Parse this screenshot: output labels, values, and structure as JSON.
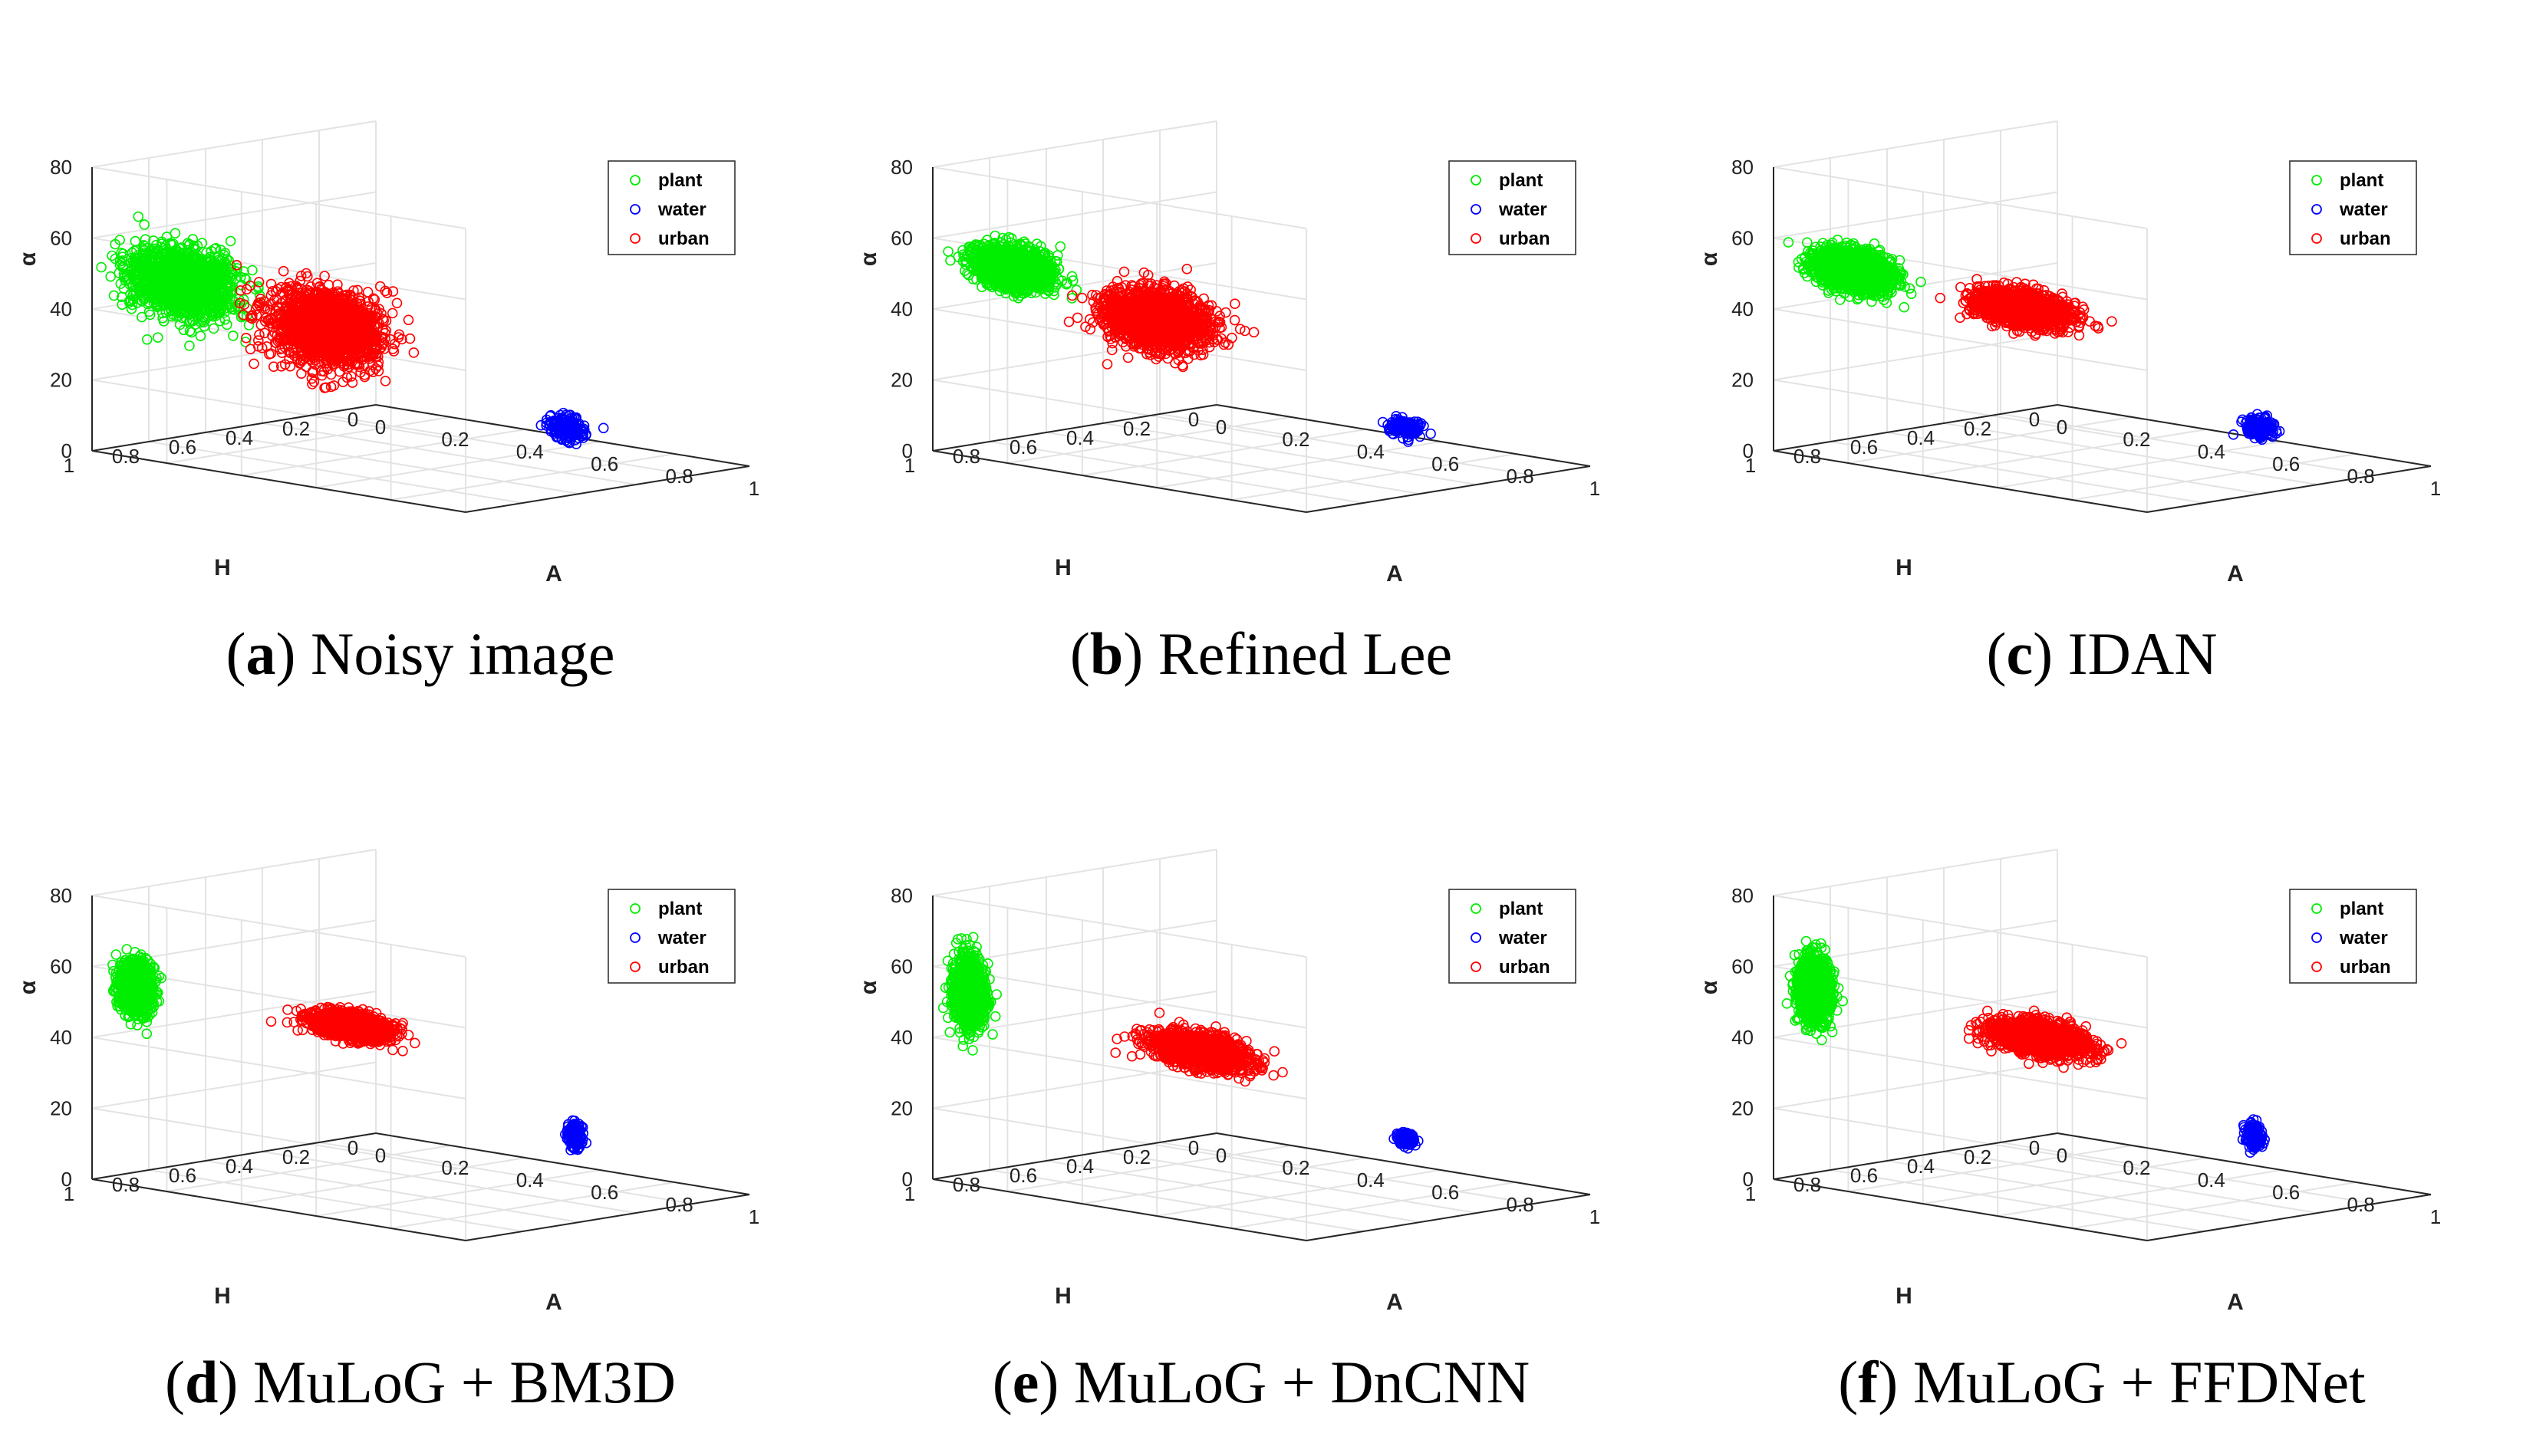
{
  "figure": {
    "panels": [
      {
        "letter": "a",
        "caption": " Noisy image"
      },
      {
        "letter": "b",
        "caption": " Refined Lee"
      },
      {
        "letter": "c",
        "caption": " IDAN"
      },
      {
        "letter": "d",
        "caption": " MuLoG + BM3D"
      },
      {
        "letter": "e",
        "caption": " MuLoG + DnCNN"
      },
      {
        "letter": "f",
        "caption": " MuLoG + FFDNet"
      }
    ]
  },
  "colors": {
    "plant": "#00ee00",
    "water": "#0000ff",
    "urban": "#ff0000",
    "grid": "#e3e3e3",
    "axis": "#262626"
  },
  "chart_data": [
    {
      "type": "scatter3d",
      "title": "(a) Noisy image",
      "xlabel": "A",
      "ylabel": "H",
      "zlabel": "α",
      "xlim": [
        0,
        1
      ],
      "ylim": [
        0,
        1
      ],
      "zlim": [
        0,
        80
      ],
      "xticks": [
        "0",
        "0.2",
        "0.4",
        "0.6",
        "0.8",
        "1"
      ],
      "yticks": [
        "0",
        "0.2",
        "0.4",
        "0.6",
        "0.8",
        "1"
      ],
      "zticks": [
        "0",
        "20",
        "40",
        "60",
        "80"
      ],
      "legend": [
        "plant",
        "water",
        "urban"
      ],
      "series": [
        {
          "name": "plant",
          "A_center": 0.22,
          "H_center": 0.97,
          "alpha_center": 51,
          "spread": [
            0.14,
            0.03,
            8
          ]
        },
        {
          "name": "water",
          "A_center": 0.56,
          "H_center": 0.06,
          "alpha_center": 4,
          "spread": [
            0.05,
            0.03,
            3
          ]
        },
        {
          "name": "urban",
          "A_center": 0.52,
          "H_center": 0.86,
          "alpha_center": 42,
          "spread": [
            0.14,
            0.06,
            9
          ]
        }
      ]
    },
    {
      "type": "scatter3d",
      "title": "(b) Refined Lee",
      "xlabel": "A",
      "ylabel": "H",
      "zlabel": "α",
      "xlim": [
        0,
        1
      ],
      "ylim": [
        0,
        1
      ],
      "zlim": [
        0,
        80
      ],
      "xticks": [
        "0",
        "0.2",
        "0.4",
        "0.6",
        "0.8",
        "1"
      ],
      "yticks": [
        "0",
        "0.2",
        "0.4",
        "0.6",
        "0.8",
        "1"
      ],
      "zticks": [
        "0",
        "20",
        "40",
        "60",
        "80"
      ],
      "legend": [
        "plant",
        "water",
        "urban"
      ],
      "series": [
        {
          "name": "plant",
          "A_center": 0.2,
          "H_center": 0.98,
          "alpha_center": 55,
          "spread": [
            0.1,
            0.02,
            5
          ]
        },
        {
          "name": "water",
          "A_center": 0.55,
          "H_center": 0.06,
          "alpha_center": 4,
          "spread": [
            0.04,
            0.02,
            2
          ]
        },
        {
          "name": "urban",
          "A_center": 0.5,
          "H_center": 0.87,
          "alpha_center": 44,
          "spread": [
            0.13,
            0.05,
            7
          ]
        }
      ]
    },
    {
      "type": "scatter3d",
      "title": "(c) IDAN",
      "xlabel": "A",
      "ylabel": "H",
      "zlabel": "α",
      "xlim": [
        0,
        1
      ],
      "ylim": [
        0,
        1
      ],
      "zlim": [
        0,
        80
      ],
      "xticks": [
        "0",
        "0.2",
        "0.4",
        "0.6",
        "0.8",
        "1"
      ],
      "yticks": [
        "0",
        "0.2",
        "0.4",
        "0.6",
        "0.8",
        "1"
      ],
      "zticks": [
        "0",
        "20",
        "40",
        "60",
        "80"
      ],
      "legend": [
        "plant",
        "water",
        "urban"
      ],
      "series": [
        {
          "name": "plant",
          "A_center": 0.2,
          "H_center": 0.98,
          "alpha_center": 54,
          "spread": [
            0.1,
            0.02,
            5
          ]
        },
        {
          "name": "water",
          "A_center": 0.6,
          "H_center": 0.08,
          "alpha_center": 5,
          "spread": [
            0.04,
            0.02,
            2.5
          ]
        },
        {
          "name": "urban",
          "A_center": 0.56,
          "H_center": 0.86,
          "alpha_center": 48,
          "spread": [
            0.12,
            0.03,
            4
          ]
        }
      ]
    },
    {
      "type": "scatter3d",
      "title": "(d) MuLoG + BM3D",
      "xlabel": "A",
      "ylabel": "H",
      "zlabel": "α",
      "xlim": [
        0,
        1
      ],
      "ylim": [
        0,
        1
      ],
      "zlim": [
        0,
        80
      ],
      "xticks": [
        "0",
        "0.2",
        "0.4",
        "0.6",
        "0.8",
        "1"
      ],
      "yticks": [
        "0",
        "0.2",
        "0.4",
        "0.6",
        "0.8",
        "1"
      ],
      "zticks": [
        "0",
        "20",
        "40",
        "60",
        "80"
      ],
      "legend": [
        "plant",
        "water",
        "urban"
      ],
      "series": [
        {
          "name": "plant",
          "A_center": 0.11,
          "H_center": 0.99,
          "alpha_center": 56,
          "spread": [
            0.04,
            0.01,
            6
          ]
        },
        {
          "name": "water",
          "A_center": 0.58,
          "H_center": 0.06,
          "alpha_center": 10,
          "spread": [
            0.02,
            0.01,
            3
          ]
        },
        {
          "name": "urban",
          "A_center": 0.6,
          "H_center": 0.88,
          "alpha_center": 52,
          "spread": [
            0.1,
            0.02,
            3
          ]
        }
      ]
    },
    {
      "type": "scatter3d",
      "title": "(e) MuLoG + DnCNN",
      "xlabel": "A",
      "ylabel": "H",
      "zlabel": "α",
      "xlim": [
        0,
        1
      ],
      "ylim": [
        0,
        1
      ],
      "zlim": [
        0,
        80
      ],
      "xticks": [
        "0",
        "0.2",
        "0.4",
        "0.6",
        "0.8",
        "1"
      ],
      "yticks": [
        "0",
        "0.2",
        "0.4",
        "0.6",
        "0.8",
        "1"
      ],
      "zticks": [
        "0",
        "20",
        "40",
        "60",
        "80"
      ],
      "legend": [
        "plant",
        "water",
        "urban"
      ],
      "series": [
        {
          "name": "plant",
          "A_center": 0.09,
          "H_center": 0.99,
          "alpha_center": 54,
          "spread": [
            0.04,
            0.01,
            8
          ]
        },
        {
          "name": "water",
          "A_center": 0.56,
          "H_center": 0.07,
          "alpha_center": 9,
          "spread": [
            0.02,
            0.01,
            1.5
          ]
        },
        {
          "name": "urban",
          "A_center": 0.62,
          "H_center": 0.87,
          "alpha_center": 45,
          "spread": [
            0.12,
            0.02,
            4
          ]
        }
      ]
    },
    {
      "type": "scatter3d",
      "title": "(f) MuLoG + FFDNet",
      "xlabel": "A",
      "ylabel": "H",
      "zlabel": "α",
      "xlim": [
        0,
        1
      ],
      "ylim": [
        0,
        1
      ],
      "zlim": [
        0,
        80
      ],
      "xticks": [
        "0",
        "0.2",
        "0.4",
        "0.6",
        "0.8",
        "1"
      ],
      "yticks": [
        "0",
        "0.2",
        "0.4",
        "0.6",
        "0.8",
        "1"
      ],
      "zticks": [
        "0",
        "20",
        "40",
        "60",
        "80"
      ],
      "legend": [
        "plant",
        "water",
        "urban"
      ],
      "series": [
        {
          "name": "plant",
          "A_center": 0.1,
          "H_center": 0.99,
          "alpha_center": 55,
          "spread": [
            0.04,
            0.01,
            7
          ]
        },
        {
          "name": "water",
          "A_center": 0.58,
          "H_center": 0.07,
          "alpha_center": 10,
          "spread": [
            0.02,
            0.01,
            3
          ]
        },
        {
          "name": "urban",
          "A_center": 0.62,
          "H_center": 0.88,
          "alpha_center": 49,
          "spread": [
            0.12,
            0.02,
            4
          ]
        }
      ]
    }
  ]
}
